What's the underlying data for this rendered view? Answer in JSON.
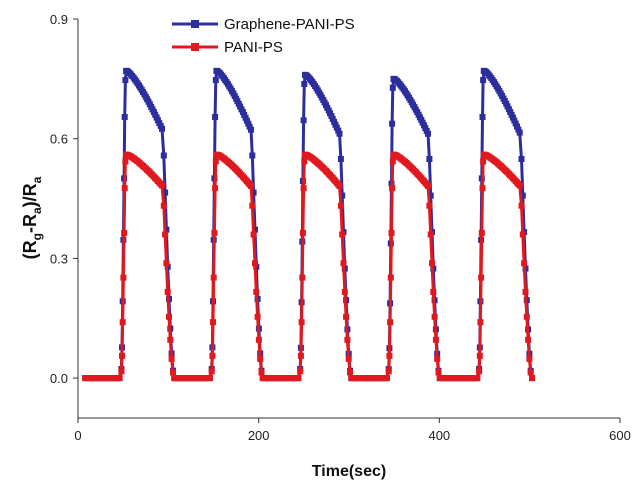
{
  "chart_data": {
    "type": "line",
    "xlabel": "Time(sec)",
    "ylabel": {
      "main": "(R",
      "sub1": "g",
      "mid": "-R",
      "sub2": "a",
      "tail": ")/R",
      "sub3": "a"
    },
    "xlim": [
      0,
      600
    ],
    "ylim": [
      -0.1,
      0.9
    ],
    "x_ticks": [
      0,
      200,
      400,
      600
    ],
    "y_ticks": [
      0.0,
      0.3,
      0.6,
      0.9
    ],
    "x_tick_labels": [
      "0",
      "200",
      "400",
      "600"
    ],
    "y_tick_labels": [
      "0.0",
      "0.3",
      "0.6",
      "0.9"
    ],
    "grid": false,
    "legend_position": "top-left",
    "series": [
      {
        "name": "Graphene-PANI-PS",
        "color": "#2b2e9c",
        "marker": "square",
        "pulses": [
          {
            "on": 48,
            "peak": 0.77,
            "end_level": 0.62,
            "off": 98,
            "base_end": 108
          },
          {
            "on": 148,
            "peak": 0.77,
            "end_level": 0.62,
            "off": 196,
            "base_end": 206
          },
          {
            "on": 246,
            "peak": 0.76,
            "end_level": 0.61,
            "off": 294,
            "base_end": 304
          },
          {
            "on": 344,
            "peak": 0.75,
            "end_level": 0.61,
            "off": 392,
            "base_end": 402
          },
          {
            "on": 444,
            "peak": 0.77,
            "end_level": 0.61,
            "off": 494,
            "base_end": 504
          }
        ]
      },
      {
        "name": "PANI-PS",
        "color": "#e0191f",
        "marker": "square",
        "pulses": [
          {
            "on": 48,
            "peak": 0.56,
            "end_level": 0.48,
            "off": 98,
            "base_end": 108
          },
          {
            "on": 148,
            "peak": 0.56,
            "end_level": 0.48,
            "off": 196,
            "base_end": 206
          },
          {
            "on": 246,
            "peak": 0.56,
            "end_level": 0.48,
            "off": 294,
            "base_end": 304
          },
          {
            "on": 344,
            "peak": 0.56,
            "end_level": 0.48,
            "off": 392,
            "base_end": 402
          },
          {
            "on": 444,
            "peak": 0.56,
            "end_level": 0.48,
            "off": 494,
            "base_end": 504
          }
        ]
      }
    ],
    "baseline_start": 8
  }
}
